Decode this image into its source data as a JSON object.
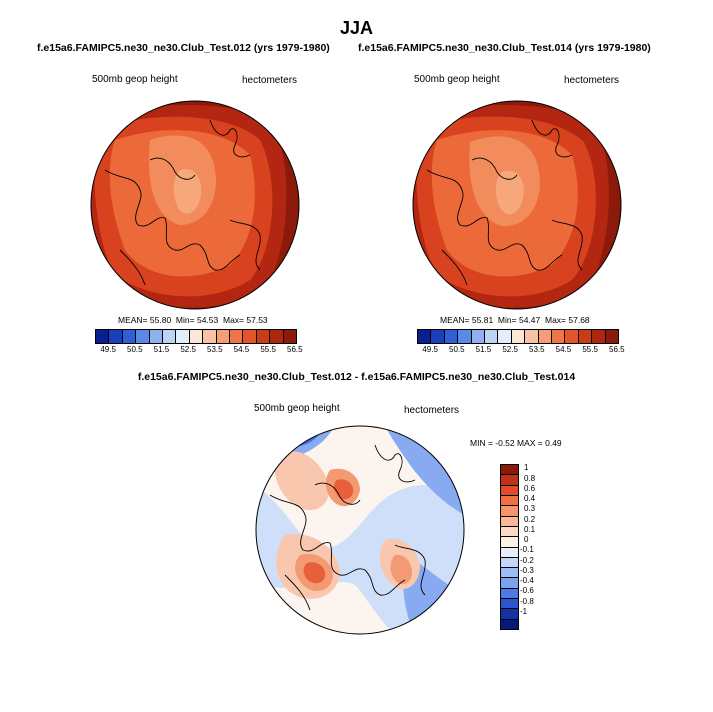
{
  "title": "JJA",
  "panels": [
    {
      "case_title": "f.e15a6.FAMIPC5.ne30_ne30.Club_Test.012 (yrs 1979-1980)",
      "left_label": "500mb geop height",
      "right_label": "hectometers",
      "stats": {
        "mean_label": "MEAN=",
        "mean": "55.80",
        "min_label": "Min=",
        "min": "54.53",
        "max_label": "Max=",
        "max": "57.53"
      }
    },
    {
      "case_title": "f.e15a6.FAMIPC5.ne30_ne30.Club_Test.014 (yrs 1979-1980)",
      "left_label": "500mb geop height",
      "right_label": "hectometers",
      "stats": {
        "mean_label": "MEAN=",
        "mean": "55.81",
        "min_label": "Min=",
        "min": "54.47",
        "max_label": "Max=",
        "max": "57.68"
      }
    }
  ],
  "colorbar": {
    "ticks": [
      "49.5",
      "50.5",
      "51.5",
      "52.5",
      "53.5",
      "54.5",
      "55.5",
      "56.5"
    ],
    "colors": [
      "#0a1f8f",
      "#1a3fb8",
      "#2f5fd6",
      "#5b8ae6",
      "#8fb2ef",
      "#bcd3f5",
      "#e3eefb",
      "#fbe6d8",
      "#f8c3a4",
      "#f59d74",
      "#ee7548",
      "#e2552b",
      "#cc3a17",
      "#ad2710",
      "#8c1a0a"
    ]
  },
  "difference": {
    "title": "f.e15a6.FAMIPC5.ne30_ne30.Club_Test.012 - f.e15a6.FAMIPC5.ne30_ne30.Club_Test.014",
    "left_label": "500mb geop height",
    "right_label": "hectometers",
    "minmax_label": "MIN = -0.52 MAX =  0.49",
    "colorbar_levels": [
      "1",
      "0.8",
      "0.6",
      "0.4",
      "0.3",
      "0.2",
      "0.1",
      "0",
      "-0.1",
      "-0.2",
      "-0.3",
      "-0.4",
      "-0.6",
      "-0.8",
      "-1"
    ],
    "colorbar_colors": [
      "#8c1a0a",
      "#c0301a",
      "#e04b28",
      "#f07043",
      "#f6946b",
      "#f9b89a",
      "#fcd9c6",
      "#fdf1e6",
      "#e6efff",
      "#c4d7fb",
      "#9dbdf6",
      "#7aa2ef",
      "#4d7be3",
      "#2a55cf",
      "#1432a8",
      "#061a7e"
    ]
  },
  "map_colors": {
    "deep_red": "#8c1a0a",
    "red": "#b32611",
    "orange_red": "#d9421e",
    "orange": "#ec6a3a",
    "light_orange": "#f28c5c",
    "peach": "#f6a77c",
    "diff_red": "#e8603a",
    "diff_orange": "#f39a72",
    "diff_peach": "#f8c7ad",
    "diff_white": "#fcf4ee",
    "diff_lightblue": "#cfdff9",
    "diff_blue": "#88aaf0",
    "diff_darkblue": "#3f6bde"
  }
}
